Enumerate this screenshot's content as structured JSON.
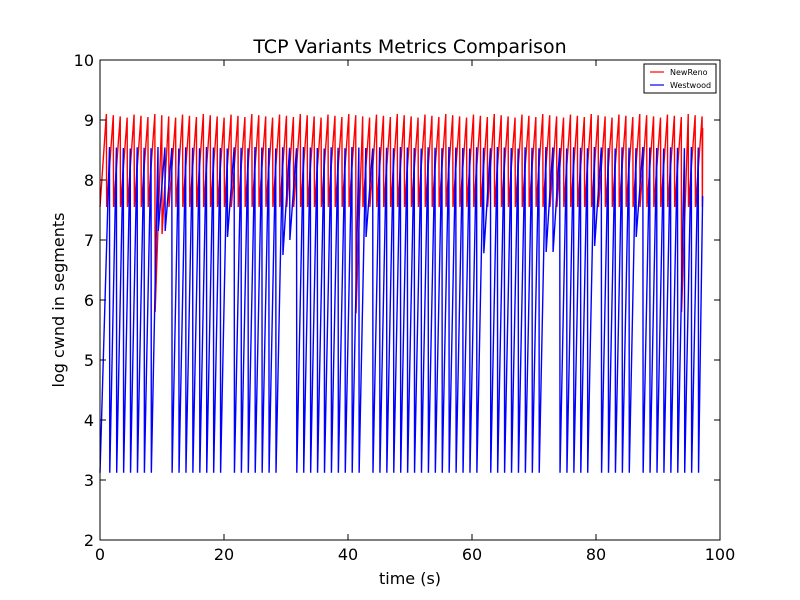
{
  "chart_data": {
    "type": "line",
    "title": "TCP Variants Metrics Comparison",
    "xlabel": "time (s)",
    "ylabel": "log cwnd in segments",
    "xlim": [
      0,
      100
    ],
    "ylim": [
      2,
      10
    ],
    "xticks": [
      0,
      20,
      40,
      60,
      80,
      100
    ],
    "yticks": [
      2,
      3,
      4,
      5,
      6,
      7,
      8,
      9,
      10
    ],
    "xtick_labels": [
      "0",
      "20",
      "40",
      "60",
      "80",
      "100"
    ],
    "ytick_labels": [
      "2",
      "3",
      "4",
      "5",
      "6",
      "7",
      "8",
      "9",
      "10"
    ],
    "grid": false,
    "legend": {
      "position": "top-right",
      "entries": [
        "NewReno",
        "Westwood"
      ]
    },
    "series": [
      {
        "name": "NewReno",
        "color": "#ff0000",
        "pattern": "sawtooth",
        "x_start": 0,
        "x_end": 97.2,
        "approx_cycles": 87,
        "peak": 9.1,
        "trough": 7.55,
        "deep_drops": [
          {
            "x": 8.7,
            "y": 5.8
          },
          {
            "x": 9.9,
            "y": 7.1
          },
          {
            "x": 41.0,
            "y": 5.78
          },
          {
            "x": 94.0,
            "y": 5.8
          }
        ]
      },
      {
        "name": "Westwood",
        "color": "#0000ff",
        "pattern": "sawtooth",
        "x_start": 0,
        "x_end": 97.2,
        "approx_cycles": 87,
        "peak": 8.55,
        "trough": 3.12,
        "partial_dips": [
          {
            "x": 10.0,
            "y": 7.15
          },
          {
            "x": 21.0,
            "y": 7.05
          },
          {
            "x": 29.7,
            "y": 6.75
          },
          {
            "x": 31.0,
            "y": 7.0
          },
          {
            "x": 43.0,
            "y": 7.05
          },
          {
            "x": 62.0,
            "y": 6.78
          },
          {
            "x": 72.5,
            "y": 6.8
          },
          {
            "x": 80.2,
            "y": 6.9
          },
          {
            "x": 86.0,
            "y": 7.05
          }
        ]
      }
    ]
  }
}
